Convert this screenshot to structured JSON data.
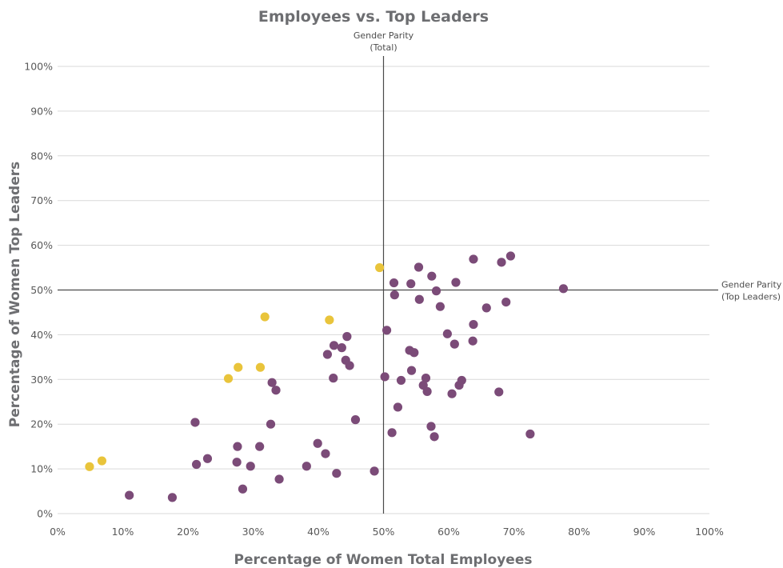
{
  "chart_data": {
    "type": "scatter",
    "title": "Employees vs. Top Leaders",
    "xlabel": "Percentage of Women Total Employees",
    "ylabel": "Percentage of Women Top Leaders",
    "xlim": [
      0,
      100
    ],
    "ylim": [
      0,
      100
    ],
    "x_ticks": [
      "0%",
      "10%",
      "20%",
      "30%",
      "40%",
      "50%",
      "60%",
      "70%",
      "80%",
      "90%",
      "100%"
    ],
    "y_ticks": [
      "0%",
      "10%",
      "20%",
      "30%",
      "40%",
      "50%",
      "60%",
      "70%",
      "80%",
      "90%",
      "100%"
    ],
    "grid": "horizontal",
    "reference_lines": [
      {
        "axis": "x",
        "value": 50,
        "label_line1": "Gender Parity",
        "label_line2": "(Total)"
      },
      {
        "axis": "y",
        "value": 50,
        "label_line1": "Gender Parity",
        "label_line2": "(Top Leaders)"
      }
    ],
    "series": [
      {
        "color": "#e9c43b",
        "points": [
          [
            4.9,
            10.5
          ],
          [
            6.8,
            11.8
          ],
          [
            26.2,
            30.2
          ],
          [
            27.7,
            32.7
          ],
          [
            31.1,
            32.7
          ],
          [
            31.8,
            44.0
          ],
          [
            41.7,
            43.3
          ],
          [
            49.4,
            55.0
          ]
        ]
      },
      {
        "color": "#7b4b78",
        "points": [
          [
            11.0,
            4.1
          ],
          [
            17.6,
            3.6
          ],
          [
            21.1,
            20.4
          ],
          [
            21.3,
            11.0
          ],
          [
            23.0,
            12.3
          ],
          [
            27.5,
            11.5
          ],
          [
            27.6,
            15.0
          ],
          [
            28.4,
            5.5
          ],
          [
            29.6,
            10.6
          ],
          [
            31.0,
            15.0
          ],
          [
            32.7,
            20.0
          ],
          [
            32.9,
            29.3
          ],
          [
            33.5,
            27.6
          ],
          [
            34.0,
            7.7
          ],
          [
            38.2,
            10.6
          ],
          [
            39.9,
            15.7
          ],
          [
            41.1,
            13.4
          ],
          [
            41.4,
            35.6
          ],
          [
            42.3,
            30.3
          ],
          [
            42.4,
            37.6
          ],
          [
            42.8,
            9.0
          ],
          [
            43.6,
            37.1
          ],
          [
            44.2,
            34.3
          ],
          [
            44.4,
            39.6
          ],
          [
            44.8,
            33.1
          ],
          [
            45.7,
            21.0
          ],
          [
            48.6,
            9.5
          ],
          [
            50.2,
            30.6
          ],
          [
            50.5,
            41.0
          ],
          [
            51.3,
            18.1
          ],
          [
            51.6,
            51.6
          ],
          [
            51.7,
            48.9
          ],
          [
            52.2,
            23.8
          ],
          [
            52.7,
            29.8
          ],
          [
            54.0,
            36.5
          ],
          [
            54.2,
            51.4
          ],
          [
            54.3,
            32.0
          ],
          [
            54.7,
            36.0
          ],
          [
            55.4,
            55.1
          ],
          [
            55.5,
            47.9
          ],
          [
            56.1,
            28.7
          ],
          [
            56.5,
            30.3
          ],
          [
            56.7,
            27.3
          ],
          [
            57.3,
            19.5
          ],
          [
            57.4,
            53.1
          ],
          [
            57.8,
            17.2
          ],
          [
            58.1,
            49.8
          ],
          [
            58.7,
            46.3
          ],
          [
            59.8,
            40.2
          ],
          [
            60.5,
            26.8
          ],
          [
            60.9,
            37.9
          ],
          [
            61.1,
            51.7
          ],
          [
            61.6,
            28.7
          ],
          [
            62.0,
            29.8
          ],
          [
            63.7,
            38.6
          ],
          [
            63.8,
            42.3
          ],
          [
            63.8,
            56.9
          ],
          [
            65.8,
            46.0
          ],
          [
            67.7,
            27.2
          ],
          [
            68.1,
            56.2
          ],
          [
            68.8,
            47.3
          ],
          [
            69.5,
            57.6
          ],
          [
            72.5,
            17.8
          ],
          [
            77.6,
            50.3
          ]
        ]
      }
    ]
  }
}
